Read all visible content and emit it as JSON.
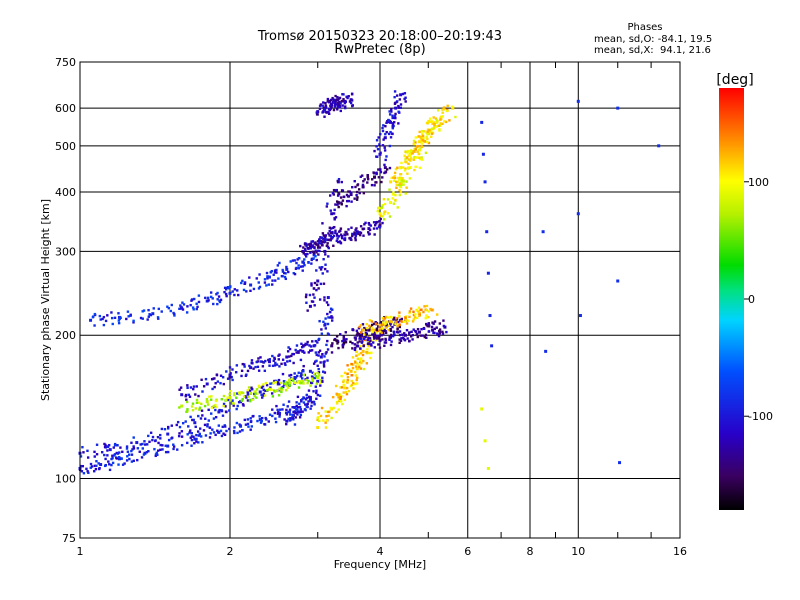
{
  "title_line1": "Tromsø 20150323 20:18:00–20:19:43",
  "title_line2": "RwPretec (8p)",
  "phases": {
    "heading": "Phases",
    "o_stats": "mean, sd,O: -84.1, 19.5",
    "x_stats": "mean, sd,X:  94.1, 21.6"
  },
  "colorbar": {
    "unit_label": "[deg]",
    "tick_labels": [
      "100",
      "0",
      "-100"
    ],
    "tick_values": [
      100,
      0,
      -100
    ],
    "range": [
      -180,
      180
    ]
  },
  "chart_data": {
    "type": "scatter",
    "xlabel": "Frequency [MHz]",
    "ylabel": "Stationary phase Virtual Height [km]",
    "xscale": "log",
    "yscale": "log",
    "xlim": [
      1,
      16
    ],
    "ylim": [
      75,
      750
    ],
    "x_ticks": [
      1,
      2,
      4,
      6,
      8,
      10,
      16
    ],
    "x_tick_labels": [
      "1",
      "2",
      "4",
      "6",
      "8",
      "10",
      "16"
    ],
    "y_ticks": [
      75,
      100,
      200,
      300,
      400,
      500,
      600,
      750
    ],
    "y_tick_labels": [
      "75",
      "100",
      "200",
      "300",
      "400",
      "500",
      "600",
      "750"
    ],
    "grid": true,
    "color_encoding": "phase [deg]",
    "traces": [
      {
        "x": [
          1.0,
          1.1,
          1.2,
          1.35,
          1.5,
          1.7,
          1.9,
          2.1,
          2.3,
          2.5,
          2.7,
          2.9
        ],
        "y": [
          105,
          107,
          110,
          113,
          117,
          121,
          125,
          129,
          133,
          137,
          141,
          146
        ],
        "phase": -95
      },
      {
        "x": [
          1.0,
          1.15,
          1.3,
          1.5,
          1.7,
          1.9,
          2.1,
          2.3,
          2.5,
          2.7,
          2.9
        ],
        "y": [
          113,
          115,
          119,
          124,
          131,
          138,
          145,
          152,
          158,
          163,
          168
        ],
        "phase": -100
      },
      {
        "x": [
          1.6,
          1.8,
          2.0,
          2.2,
          2.4,
          2.6,
          2.8,
          2.95
        ],
        "y": [
          150,
          158,
          165,
          171,
          176,
          180,
          185,
          190
        ],
        "phase": -110
      },
      {
        "x": [
          2.6,
          2.75,
          2.9,
          3.0,
          3.05,
          3.1,
          3.15
        ],
        "y": [
          132,
          138,
          148,
          160,
          180,
          210,
          240
        ],
        "phase": -105
      },
      {
        "x": [
          1.6,
          1.8,
          2.0,
          2.2,
          2.4,
          2.6,
          2.8,
          3.0
        ],
        "y": [
          142,
          145,
          148,
          151,
          154,
          157,
          160,
          163
        ],
        "phase": 75
      },
      {
        "x": [
          3.0,
          3.2,
          3.4,
          3.6,
          3.8
        ],
        "y": [
          128,
          140,
          155,
          170,
          190
        ],
        "phase": 110
      },
      {
        "x": [
          3.3,
          3.5,
          3.7,
          3.9
        ],
        "y": [
          150,
          168,
          185,
          205
        ],
        "phase": 120
      },
      {
        "x": [
          1.05,
          1.2,
          1.4,
          1.6,
          1.8,
          2.0,
          2.2,
          2.4,
          2.6,
          2.8,
          2.95
        ],
        "y": [
          215,
          218,
          222,
          228,
          236,
          245,
          255,
          265,
          275,
          285,
          295
        ],
        "phase": -90
      },
      {
        "x": [
          2.8,
          2.9,
          3.0,
          3.1,
          3.2,
          3.4,
          3.6,
          3.8,
          4.0
        ],
        "y": [
          300,
          305,
          310,
          315,
          320,
          325,
          330,
          335,
          340
        ],
        "phase": -125
      },
      {
        "x": [
          2.9,
          3.0,
          3.1,
          3.2,
          3.3
        ],
        "y": [
          230,
          260,
          300,
          360,
          420
        ],
        "phase": -120
      },
      {
        "x": [
          3.2,
          3.4,
          3.6,
          3.8,
          4.0,
          4.2,
          4.4
        ],
        "y": [
          190,
          195,
          200,
          205,
          208,
          212,
          215
        ],
        "phase": -140
      },
      {
        "x": [
          3.6,
          3.8,
          4.0,
          4.2,
          4.5,
          4.8,
          5.1,
          5.4
        ],
        "y": [
          190,
          192,
          195,
          198,
          200,
          203,
          205,
          208
        ],
        "phase": -130
      },
      {
        "x": [
          3.7,
          4.0,
          4.2,
          4.5,
          4.8,
          5.1
        ],
        "y": [
          205,
          210,
          214,
          218,
          222,
          226
        ],
        "phase": 120
      },
      {
        "x": [
          3.0,
          3.1,
          3.2,
          3.3,
          3.4,
          3.5
        ],
        "y": [
          590,
          600,
          610,
          615,
          620,
          625
        ],
        "phase": -120
      },
      {
        "x": [
          3.3,
          3.5,
          3.7,
          3.9,
          4.1
        ],
        "y": [
          380,
          395,
          410,
          430,
          450
        ],
        "phase": -135
      },
      {
        "x": [
          4.0,
          4.2,
          4.4,
          4.6,
          4.8,
          5.0,
          5.2
        ],
        "y": [
          360,
          380,
          410,
          450,
          490,
          530,
          560
        ],
        "phase": 95
      },
      {
        "x": [
          4.2,
          4.4,
          4.6,
          4.8,
          5.0,
          5.3,
          5.6
        ],
        "y": [
          420,
          450,
          480,
          510,
          540,
          570,
          600
        ],
        "phase": 110
      },
      {
        "x": [
          4.0,
          4.1,
          4.2,
          4.3,
          4.4
        ],
        "y": [
          480,
          520,
          560,
          600,
          640
        ],
        "phase": -110
      },
      {
        "x": [
          6.4,
          6.45,
          6.5,
          6.55,
          6.6,
          6.65,
          6.7
        ],
        "y": [
          560,
          480,
          420,
          330,
          270,
          220,
          190
        ],
        "phase": -90
      },
      {
        "x": [
          6.4,
          6.5,
          6.6
        ],
        "y": [
          140,
          120,
          105
        ],
        "phase": 90
      },
      {
        "x": [
          8.5,
          8.6,
          10.0,
          10.0,
          10.1,
          12.0,
          12.0,
          12.1,
          14.5
        ],
        "y": [
          330,
          185,
          620,
          360,
          220,
          600,
          260,
          108,
          500
        ],
        "phase": -85
      }
    ]
  }
}
